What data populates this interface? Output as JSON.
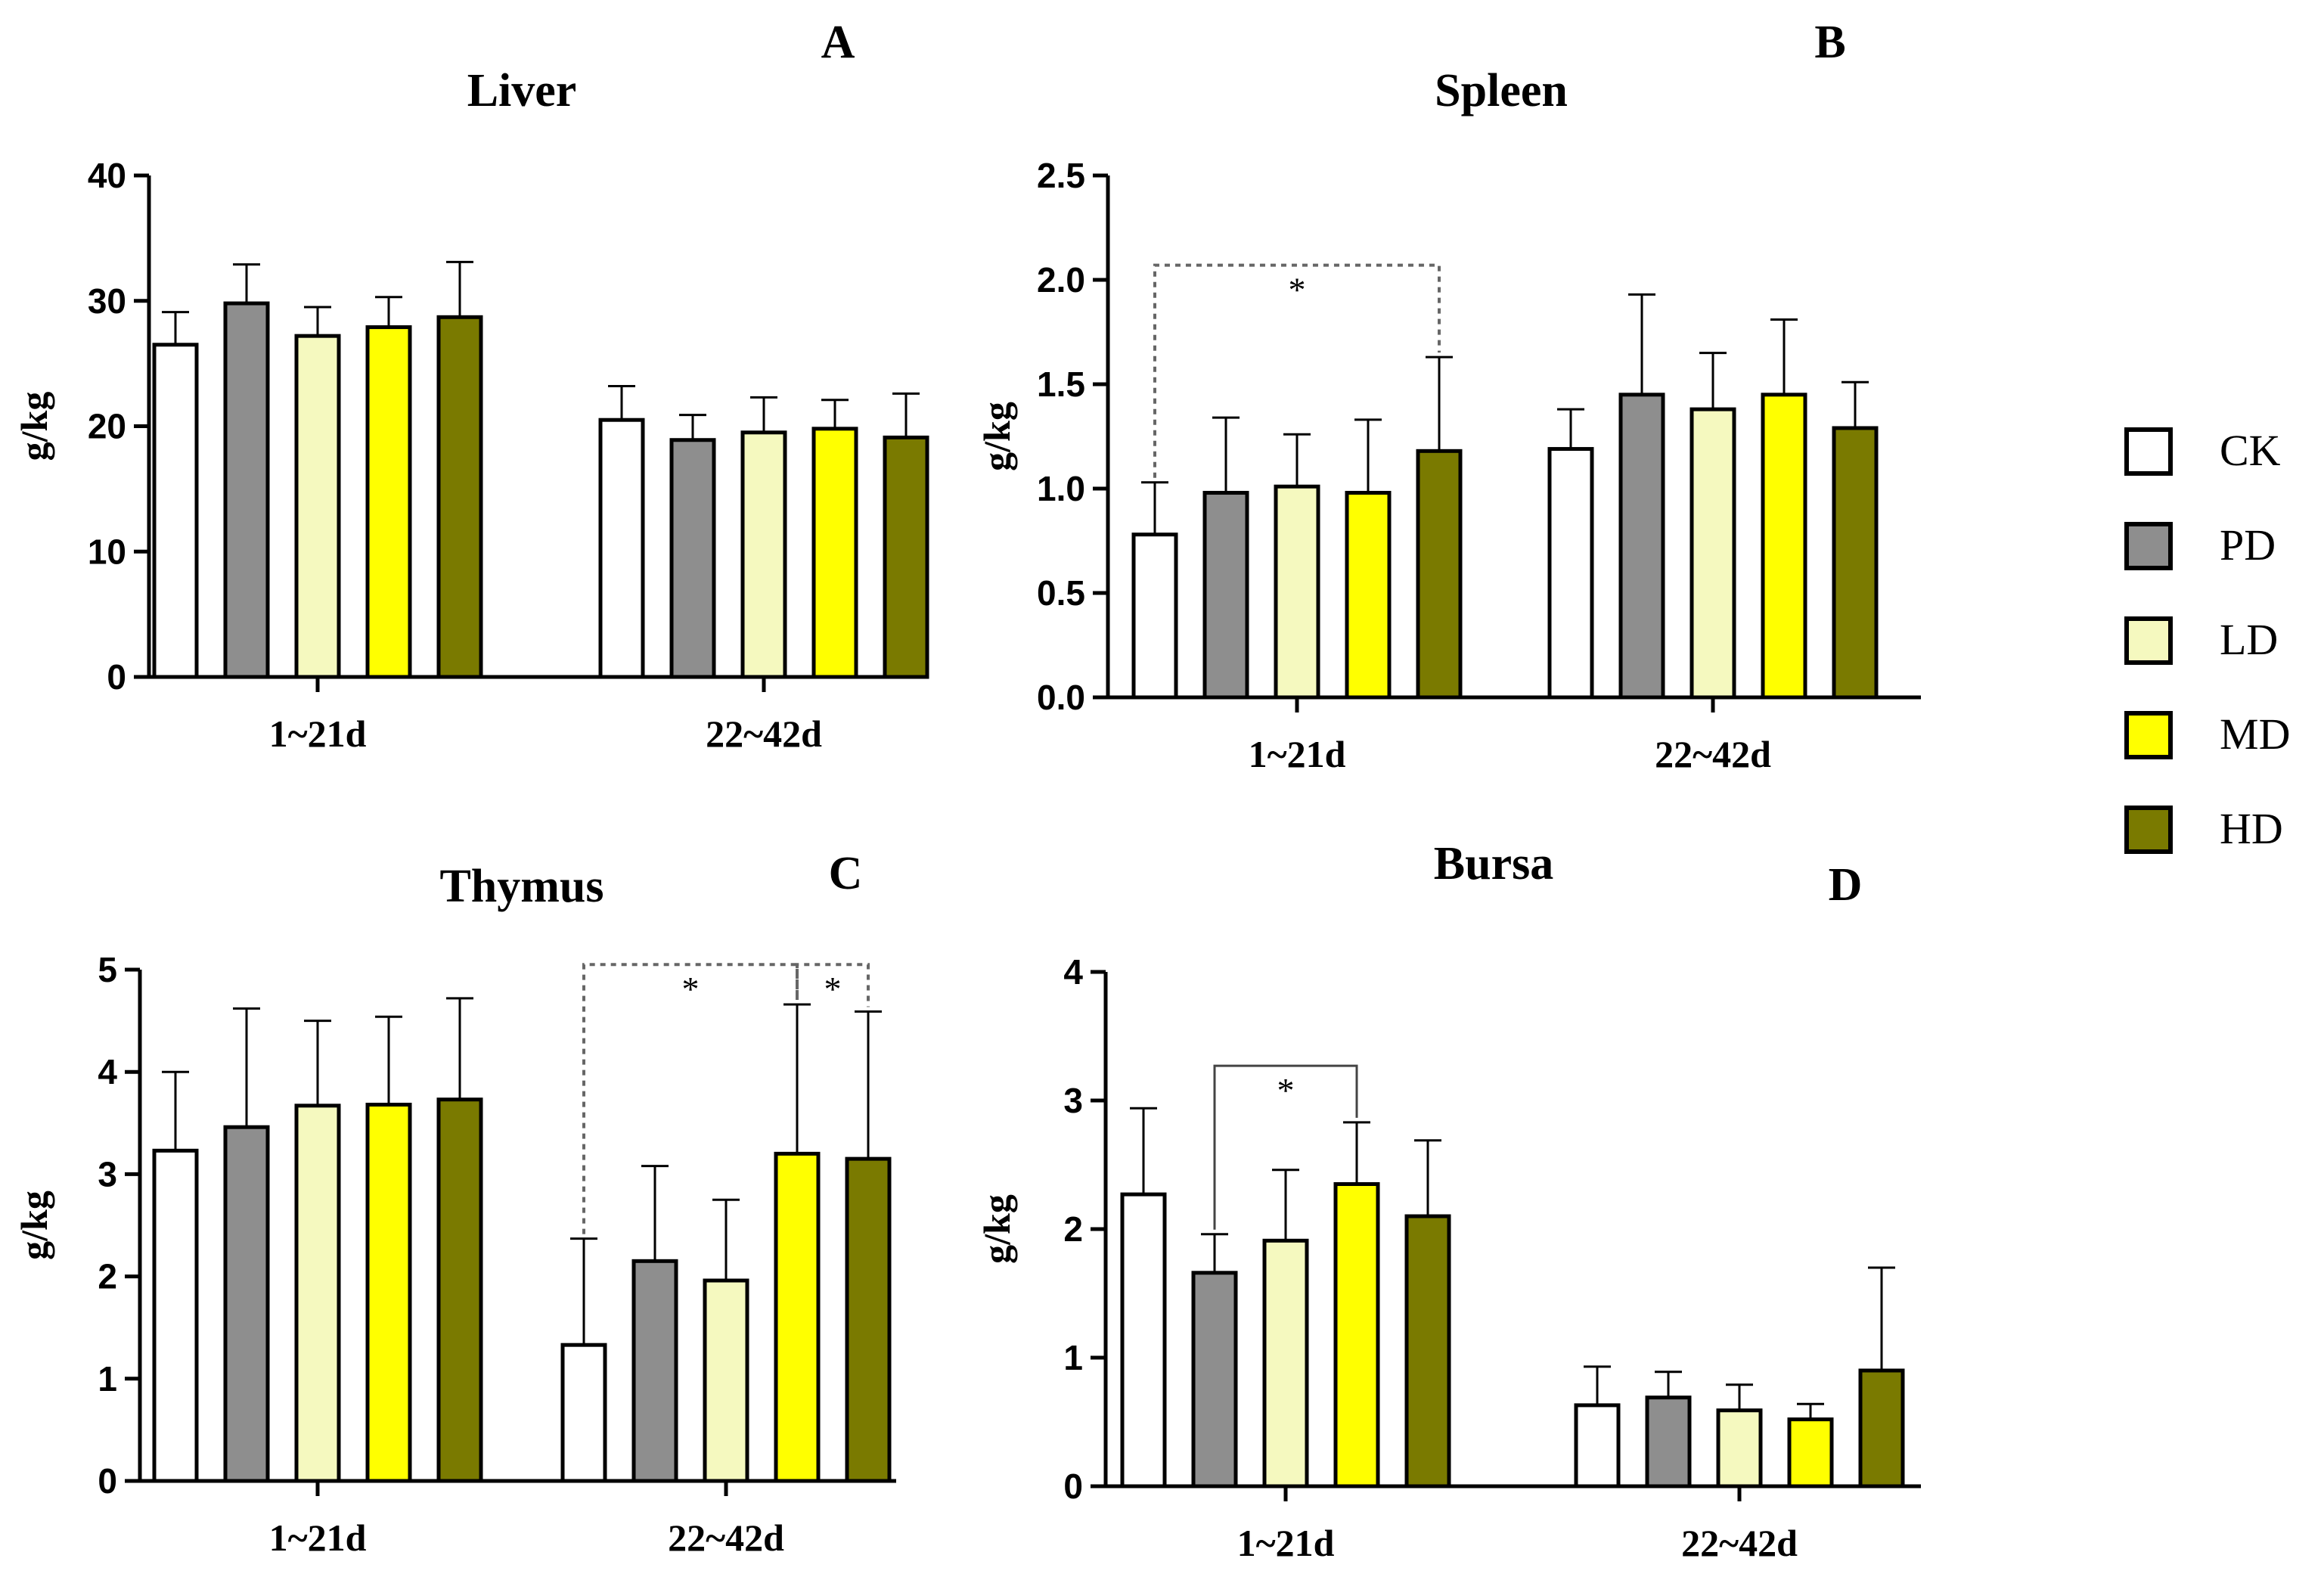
{
  "legend": [
    {
      "label": "CK",
      "color": "#ffffff"
    },
    {
      "label": "PD",
      "color": "#8e8e8e"
    },
    {
      "label": "LD",
      "color": "#f5f9bf"
    },
    {
      "label": "MD",
      "color": "#ffff00"
    },
    {
      "label": "HD",
      "color": "#7a7a00"
    }
  ],
  "chart_data": [
    {
      "type": "bar",
      "letter": "A",
      "title": "Liver",
      "ylabel": "g/kg",
      "ylim": [
        0,
        40
      ],
      "yticks": [
        0,
        10,
        20,
        30,
        40
      ],
      "tick_labels": [
        "0",
        "10",
        "20",
        "30",
        "40"
      ],
      "categories": [
        "1~21d",
        "22~42d"
      ],
      "series": [
        {
          "name": "CK",
          "values": [
            26.5,
            20.5
          ],
          "errors": [
            2.6,
            2.7
          ]
        },
        {
          "name": "PD",
          "values": [
            29.8,
            18.9
          ],
          "errors": [
            3.1,
            2.0
          ]
        },
        {
          "name": "LD",
          "values": [
            27.2,
            19.5
          ],
          "errors": [
            2.3,
            2.8
          ]
        },
        {
          "name": "MD",
          "values": [
            27.9,
            19.8
          ],
          "errors": [
            2.4,
            2.3
          ]
        },
        {
          "name": "HD",
          "values": [
            28.7,
            19.1
          ],
          "errors": [
            4.4,
            3.5
          ]
        }
      ],
      "significance": []
    },
    {
      "type": "bar",
      "letter": "B",
      "title": "Spleen",
      "ylabel": "g/kg",
      "ylim": [
        0,
        2.5
      ],
      "yticks": [
        0,
        0.5,
        1.0,
        1.5,
        2.0,
        2.5
      ],
      "tick_labels": [
        "0.0",
        "0.5",
        "1.0",
        "1.5",
        "2.0",
        "2.5"
      ],
      "categories": [
        "1~21d",
        "22~42d"
      ],
      "series": [
        {
          "name": "CK",
          "values": [
            0.78,
            1.19
          ],
          "errors": [
            0.25,
            0.19
          ]
        },
        {
          "name": "PD",
          "values": [
            0.98,
            1.45
          ],
          "errors": [
            0.36,
            0.48
          ]
        },
        {
          "name": "LD",
          "values": [
            1.01,
            1.38
          ],
          "errors": [
            0.25,
            0.27
          ]
        },
        {
          "name": "MD",
          "values": [
            0.98,
            1.45
          ],
          "errors": [
            0.35,
            0.36
          ]
        },
        {
          "name": "HD",
          "values": [
            1.18,
            1.29
          ],
          "errors": [
            0.45,
            0.22
          ]
        }
      ],
      "significance": [
        {
          "group": 0,
          "from": 0,
          "to": 4,
          "y": 2.07,
          "label": "*",
          "dashed": true
        }
      ]
    },
    {
      "type": "bar",
      "letter": "C",
      "title": "Thymus",
      "ylabel": "g/kg",
      "ylim": [
        0,
        5
      ],
      "yticks": [
        0,
        1,
        2,
        3,
        4,
        5
      ],
      "tick_labels": [
        "0",
        "1",
        "2",
        "3",
        "4",
        "5"
      ],
      "categories": [
        "1~21d",
        "22~42d"
      ],
      "series": [
        {
          "name": "CK",
          "values": [
            3.23,
            1.33
          ],
          "errors": [
            0.77,
            1.04
          ]
        },
        {
          "name": "PD",
          "values": [
            3.46,
            2.15
          ],
          "errors": [
            1.16,
            0.93
          ]
        },
        {
          "name": "LD",
          "values": [
            3.67,
            1.96
          ],
          "errors": [
            0.83,
            0.79
          ]
        },
        {
          "name": "MD",
          "values": [
            3.68,
            3.2
          ],
          "errors": [
            0.86,
            1.46
          ]
        },
        {
          "name": "HD",
          "values": [
            3.73,
            3.15
          ],
          "errors": [
            0.99,
            1.44
          ]
        }
      ],
      "significance": [
        {
          "group": 1,
          "from": 0,
          "to": 3,
          "y": 5.05,
          "label": "*",
          "dashed": true
        },
        {
          "group": 1,
          "from": 3,
          "to": 4,
          "y": 5.05,
          "label": "*",
          "dashed": true
        }
      ]
    },
    {
      "type": "bar",
      "letter": "D",
      "title": "Bursa",
      "ylabel": "g/kg",
      "ylim": [
        0,
        4
      ],
      "yticks": [
        0,
        1,
        2,
        3,
        4
      ],
      "tick_labels": [
        "0",
        "1",
        "2",
        "3",
        "4"
      ],
      "categories": [
        "1~21d",
        "22~42d"
      ],
      "series": [
        {
          "name": "CK",
          "values": [
            2.27,
            0.63
          ],
          "errors": [
            0.67,
            0.3
          ]
        },
        {
          "name": "PD",
          "values": [
            1.66,
            0.69
          ],
          "errors": [
            0.3,
            0.2
          ]
        },
        {
          "name": "LD",
          "values": [
            1.91,
            0.59
          ],
          "errors": [
            0.55,
            0.2
          ]
        },
        {
          "name": "MD",
          "values": [
            2.35,
            0.52
          ],
          "errors": [
            0.48,
            0.12
          ]
        },
        {
          "name": "HD",
          "values": [
            2.1,
            0.9
          ],
          "errors": [
            0.59,
            0.8
          ]
        }
      ],
      "significance": [
        {
          "group": 0,
          "from": 1,
          "to": 3,
          "y": 3.27,
          "label": "*",
          "dashed": false
        }
      ]
    }
  ]
}
